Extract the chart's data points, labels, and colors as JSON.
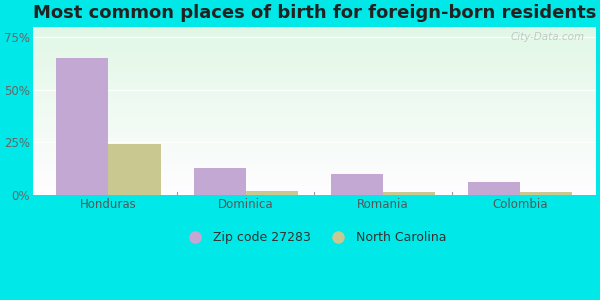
{
  "title": "Most common places of birth for foreign-born residents",
  "categories": [
    "Honduras",
    "Dominica",
    "Romania",
    "Colombia"
  ],
  "zip_values": [
    65,
    13,
    10,
    6
  ],
  "nc_values": [
    24,
    2,
    1.5,
    1.5
  ],
  "zip_color": "#c4a8d4",
  "nc_color": "#c8c890",
  "bar_width": 0.38,
  "ylim": [
    0,
    80
  ],
  "yticks": [
    0,
    25,
    50,
    75
  ],
  "yticklabels": [
    "0%",
    "25%",
    "50%",
    "75%"
  ],
  "legend_zip_label": "Zip code 27283",
  "legend_nc_label": "North Carolina",
  "bg_outer": "#00e8e8",
  "watermark": "City-Data.com",
  "title_fontsize": 13,
  "tick_fontsize": 8.5,
  "legend_fontsize": 9
}
